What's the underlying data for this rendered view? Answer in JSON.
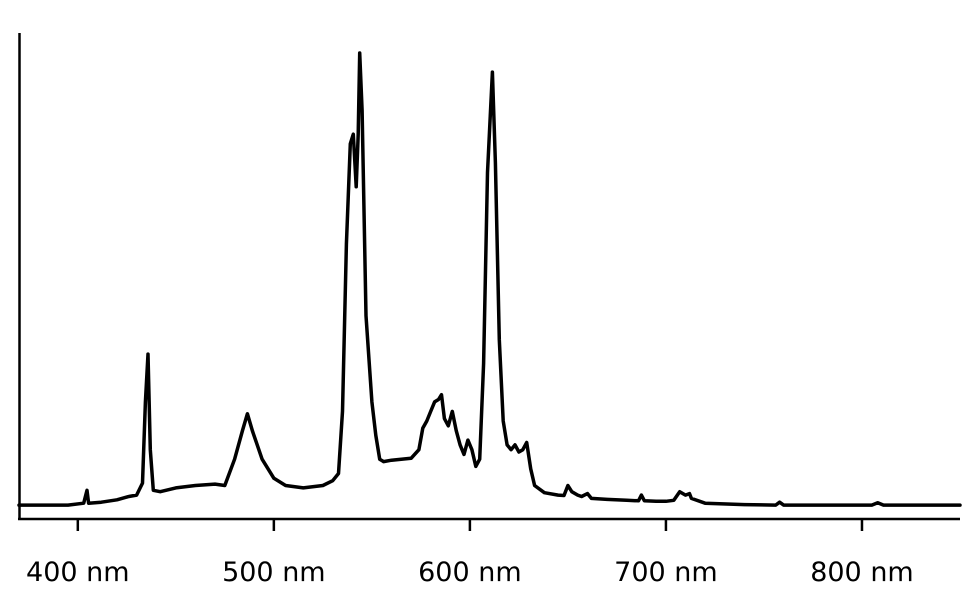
{
  "chart_data": {
    "type": "line",
    "title": "",
    "xlabel": "",
    "ylabel": "",
    "xlim": [
      370,
      850
    ],
    "ylim": [
      0,
      1.0
    ],
    "grid": false,
    "legend": "none",
    "y_axis_ticks": false,
    "x_ticks": [
      {
        "value": 400,
        "label": "400 nm"
      },
      {
        "value": 500,
        "label": "500 nm"
      },
      {
        "value": 600,
        "label": "600 nm"
      },
      {
        "value": 700,
        "label": "700 nm"
      },
      {
        "value": 800,
        "label": "800 nm"
      }
    ],
    "series": [
      {
        "color": "#000000",
        "points": [
          [
            370,
            0.004
          ],
          [
            395,
            0.004
          ],
          [
            403,
            0.008
          ],
          [
            404.7,
            0.035
          ],
          [
            405.5,
            0.008
          ],
          [
            412,
            0.01
          ],
          [
            420,
            0.015
          ],
          [
            426,
            0.022
          ],
          [
            430,
            0.025
          ],
          [
            433,
            0.05
          ],
          [
            434.5,
            0.22
          ],
          [
            435.8,
            0.32
          ],
          [
            437,
            0.12
          ],
          [
            438.5,
            0.035
          ],
          [
            442,
            0.032
          ],
          [
            450,
            0.04
          ],
          [
            460,
            0.045
          ],
          [
            470,
            0.048
          ],
          [
            475,
            0.045
          ],
          [
            480,
            0.1
          ],
          [
            484,
            0.16
          ],
          [
            486.5,
            0.195
          ],
          [
            489,
            0.16
          ],
          [
            494,
            0.1
          ],
          [
            500,
            0.06
          ],
          [
            506,
            0.045
          ],
          [
            515,
            0.04
          ],
          [
            525,
            0.045
          ],
          [
            530,
            0.055
          ],
          [
            533,
            0.07
          ],
          [
            535,
            0.2
          ],
          [
            537,
            0.55
          ],
          [
            539,
            0.76
          ],
          [
            540.5,
            0.78
          ],
          [
            542,
            0.67
          ],
          [
            543,
            0.78
          ],
          [
            543.8,
            0.95
          ],
          [
            545,
            0.83
          ],
          [
            547,
            0.4
          ],
          [
            550,
            0.22
          ],
          [
            552,
            0.15
          ],
          [
            554,
            0.1
          ],
          [
            556,
            0.095
          ],
          [
            560,
            0.098
          ],
          [
            570,
            0.102
          ],
          [
            574,
            0.12
          ],
          [
            576,
            0.165
          ],
          [
            578,
            0.18
          ],
          [
            580,
            0.2
          ],
          [
            582,
            0.22
          ],
          [
            584,
            0.225
          ],
          [
            585.5,
            0.235
          ],
          [
            587,
            0.185
          ],
          [
            589,
            0.17
          ],
          [
            591,
            0.2
          ],
          [
            593,
            0.16
          ],
          [
            595,
            0.13
          ],
          [
            597,
            0.11
          ],
          [
            599,
            0.14
          ],
          [
            601,
            0.12
          ],
          [
            603,
            0.085
          ],
          [
            605,
            0.1
          ],
          [
            607,
            0.3
          ],
          [
            609,
            0.7
          ],
          [
            611.5,
            0.91
          ],
          [
            613,
            0.72
          ],
          [
            615,
            0.35
          ],
          [
            617,
            0.18
          ],
          [
            619,
            0.13
          ],
          [
            621,
            0.12
          ],
          [
            623,
            0.13
          ],
          [
            625,
            0.115
          ],
          [
            627,
            0.12
          ],
          [
            629,
            0.135
          ],
          [
            631,
            0.08
          ],
          [
            633,
            0.045
          ],
          [
            638,
            0.03
          ],
          [
            645,
            0.025
          ],
          [
            648,
            0.024
          ],
          [
            650,
            0.045
          ],
          [
            652,
            0.032
          ],
          [
            655,
            0.025
          ],
          [
            657,
            0.022
          ],
          [
            660,
            0.028
          ],
          [
            662,
            0.018
          ],
          [
            670,
            0.016
          ],
          [
            680,
            0.014
          ],
          [
            686,
            0.013
          ],
          [
            687.5,
            0.025
          ],
          [
            689,
            0.013
          ],
          [
            695,
            0.012
          ],
          [
            700,
            0.012
          ],
          [
            704,
            0.014
          ],
          [
            707,
            0.032
          ],
          [
            710,
            0.025
          ],
          [
            712,
            0.028
          ],
          [
            713,
            0.018
          ],
          [
            720,
            0.008
          ],
          [
            740,
            0.005
          ],
          [
            756,
            0.004
          ],
          [
            758,
            0.01
          ],
          [
            760,
            0.004
          ],
          [
            790,
            0.004
          ],
          [
            805,
            0.004
          ],
          [
            808,
            0.009
          ],
          [
            811,
            0.004
          ],
          [
            850,
            0.004
          ]
        ]
      }
    ]
  }
}
